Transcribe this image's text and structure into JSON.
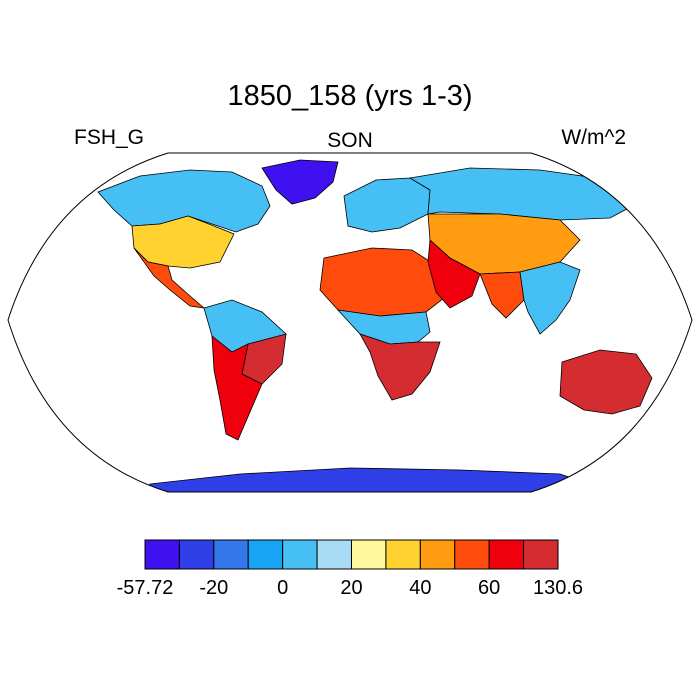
{
  "title": "1850_158 (yrs 1-3)",
  "left_label": "FSH_G",
  "center_label": "SON",
  "right_label": "W/m^2",
  "colorbar": {
    "colors": [
      "#3f10f0",
      "#2f3fe8",
      "#3478ec",
      "#18a4f4",
      "#46c0f4",
      "#a8dcf4",
      "#fff89c",
      "#ffd230",
      "#ff9c10",
      "#ff4c0c",
      "#f0000c",
      "#d42c30"
    ],
    "tick_labels": [
      "-57.72",
      "-20",
      "0",
      "20",
      "40",
      "60",
      "130.6"
    ]
  },
  "map": {
    "projection": "Robinson",
    "ocean_color": "#ffffff",
    "coastline_color": "#000000",
    "regions": [
      {
        "name": "greenland",
        "color_index": 0
      },
      {
        "name": "canada",
        "color_index": 4
      },
      {
        "name": "usa",
        "color_index": 7
      },
      {
        "name": "mexico",
        "color_index": 9
      },
      {
        "name": "south-america-north",
        "color_index": 4
      },
      {
        "name": "brazil-east",
        "color_index": 11
      },
      {
        "name": "south-america-south",
        "color_index": 10
      },
      {
        "name": "europe",
        "color_index": 4
      },
      {
        "name": "siberia",
        "color_index": 4
      },
      {
        "name": "central-asia",
        "color_index": 8
      },
      {
        "name": "north-africa",
        "color_index": 9
      },
      {
        "name": "central-africa",
        "color_index": 4
      },
      {
        "name": "southern-africa",
        "color_index": 11
      },
      {
        "name": "arabia",
        "color_index": 10
      },
      {
        "name": "india",
        "color_index": 9
      },
      {
        "name": "southeast-asia",
        "color_index": 4
      },
      {
        "name": "australia",
        "color_index": 11
      },
      {
        "name": "antarctica",
        "color_index": 1
      }
    ]
  }
}
